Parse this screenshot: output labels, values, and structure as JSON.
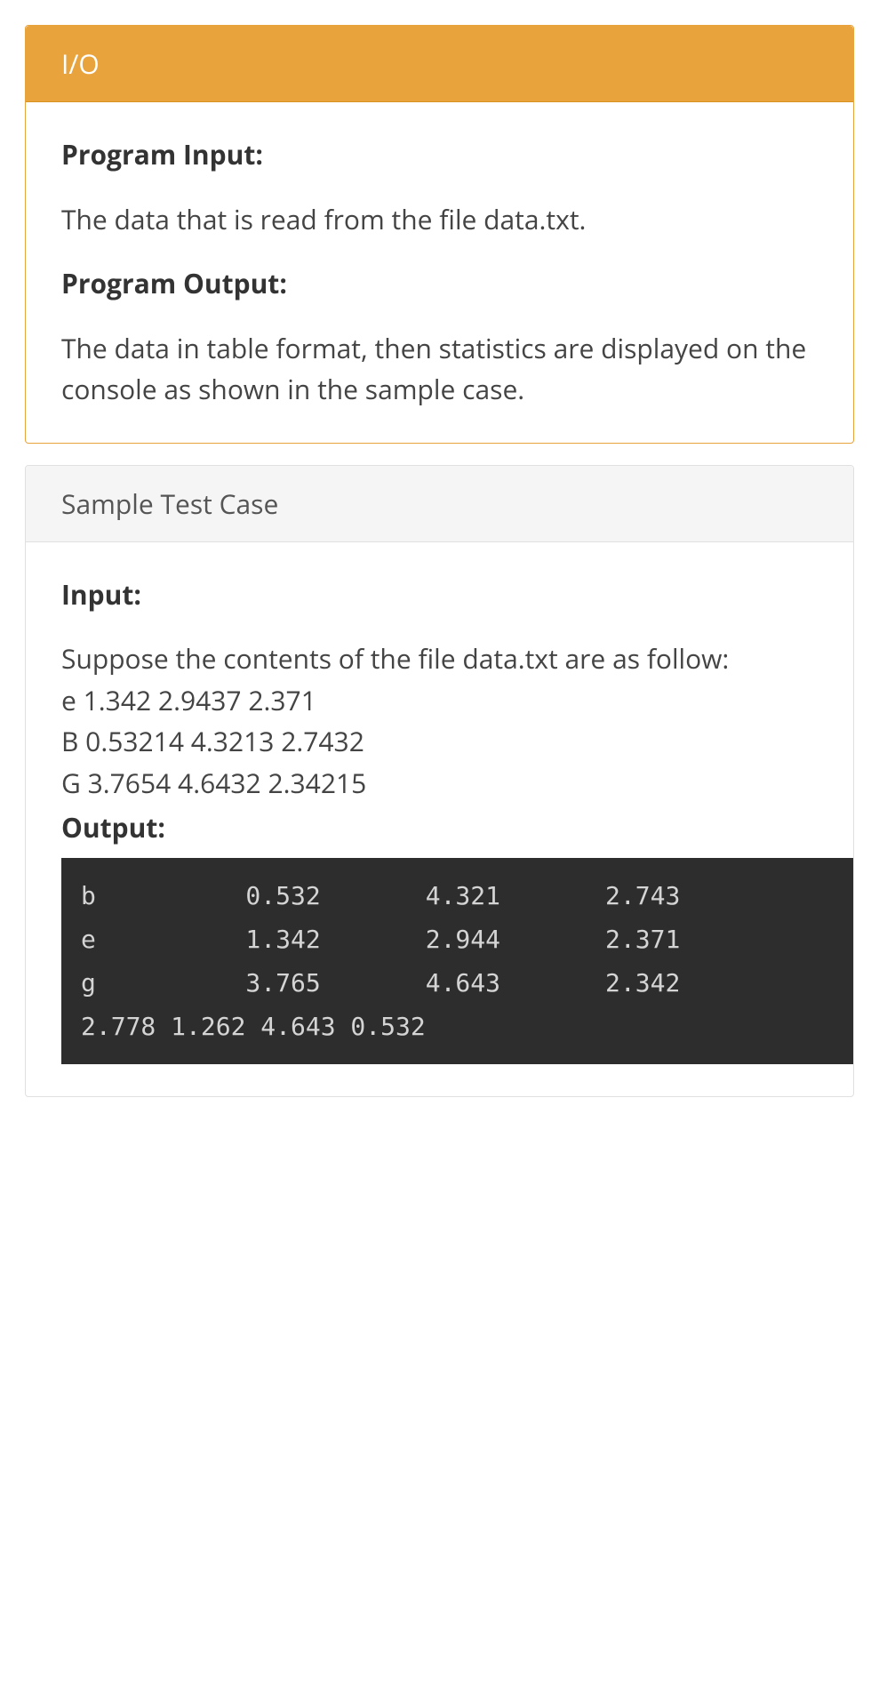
{
  "io_panel": {
    "title": "I/O",
    "program_input_heading": "Program Input:",
    "program_input_text": "The data that is read from the file data.txt.",
    "program_output_heading": "Program Output:",
    "program_output_text": "The data in table format, then statistics are displayed on the console as shown in the sample case.",
    "header_bg": "#e8a33d",
    "header_fg": "#ffffff",
    "border_color": "#e8a33d"
  },
  "sample_panel": {
    "title": "Sample Test Case",
    "input_heading": "Input:",
    "input_intro": "Suppose the contents of the file data.txt are as follow:",
    "file_lines": [
      "e 1.342 2.9437 2.371",
      "B 0.53214 4.3213 2.7432",
      "G 3.7654 4.6432 2.34215"
    ],
    "output_heading": "Output:",
    "console": {
      "rows": [
        {
          "label": "b",
          "v1": "0.532",
          "v2": "4.321",
          "v3": "2.743"
        },
        {
          "label": "e",
          "v1": "1.342",
          "v2": "2.944",
          "v3": "2.371"
        },
        {
          "label": "g",
          "v1": "3.765",
          "v2": "4.643",
          "v3": "2.342"
        }
      ],
      "stats_line": "2.778 1.262 4.643 0.532",
      "bg": "#2d2d2d",
      "fg": "#d4d4d4",
      "col_widths": {
        "label": 1,
        "gap1": 10,
        "num": 5,
        "gap2": 7
      }
    },
    "header_bg": "#f5f5f5",
    "header_fg": "#555555",
    "border_color": "#e0e0e0"
  }
}
